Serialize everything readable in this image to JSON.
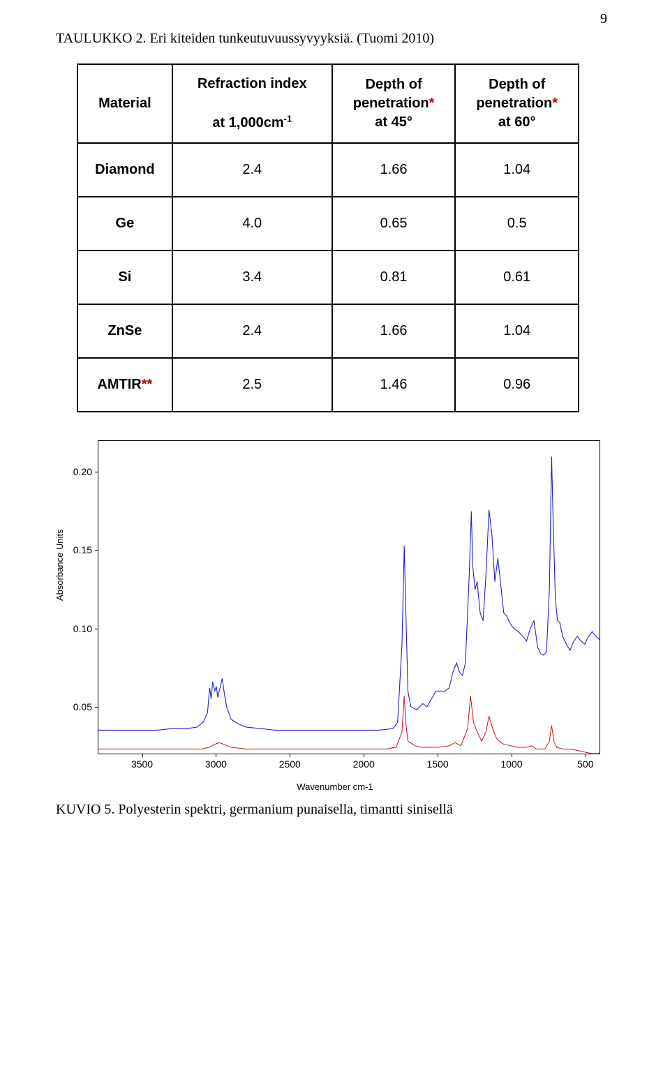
{
  "page_number": "9",
  "caption_table": "TAULUKKO 2. Eri kiteiden tunkeutuvuussyvyyksiä. (Tuomi 2010)",
  "table": {
    "headers": {
      "col0_title": "Material",
      "col1_line1": "Refraction index",
      "col1_line2_prefix": "at 1,000cm",
      "col1_line2_exp": "-1",
      "col2_line1": "Depth of",
      "col2_line2_word": "penetration",
      "col2_line2_star": "*",
      "col2_line3": "at 45°",
      "col3_line1": "Depth of",
      "col3_line2_word": "penetration",
      "col3_line2_star": "*",
      "col3_line3": "at 60°"
    },
    "rows": [
      {
        "material": "Diamond",
        "star": "",
        "ri": "2.4",
        "d45": "1.66",
        "d60": "1.04"
      },
      {
        "material": "Ge",
        "star": "",
        "ri": "4.0",
        "d45": "0.65",
        "d60": "0.5"
      },
      {
        "material": "Si",
        "star": "",
        "ri": "3.4",
        "d45": "0.81",
        "d60": "0.61"
      },
      {
        "material": "ZnSe",
        "star": "",
        "ri": "2.4",
        "d45": "1.66",
        "d60": "1.04"
      },
      {
        "material": "AMTIR",
        "star": "**",
        "ri": "2.5",
        "d45": "1.46",
        "d60": "0.96"
      }
    ]
  },
  "chart": {
    "ylabel": "Absorbance Units",
    "xlabel": "Wavenumber cm-1",
    "xmin": 400,
    "xmax": 3800,
    "ymin": 0.02,
    "ymax": 0.22,
    "yticks": [
      {
        "v": 0.05,
        "label": "0.05"
      },
      {
        "v": 0.1,
        "label": "0.10"
      },
      {
        "v": 0.15,
        "label": "0.15"
      },
      {
        "v": 0.2,
        "label": "0.20"
      }
    ],
    "xticks": [
      {
        "v": 3500,
        "label": "3500"
      },
      {
        "v": 3000,
        "label": "3000"
      },
      {
        "v": 2500,
        "label": "2500"
      },
      {
        "v": 2000,
        "label": "2000"
      },
      {
        "v": 1500,
        "label": "1500"
      },
      {
        "v": 1000,
        "label": "1000"
      },
      {
        "v": 500,
        "label": "500"
      }
    ],
    "series": [
      {
        "name": "diamond-blue",
        "color": "#1f1fd6",
        "width": 1.1,
        "points": [
          [
            3800,
            0.035
          ],
          [
            3700,
            0.035
          ],
          [
            3600,
            0.035
          ],
          [
            3500,
            0.035
          ],
          [
            3400,
            0.035
          ],
          [
            3300,
            0.036
          ],
          [
            3200,
            0.036
          ],
          [
            3130,
            0.037
          ],
          [
            3090,
            0.04
          ],
          [
            3060,
            0.046
          ],
          [
            3045,
            0.062
          ],
          [
            3035,
            0.055
          ],
          [
            3025,
            0.066
          ],
          [
            3010,
            0.06
          ],
          [
            3000,
            0.063
          ],
          [
            2990,
            0.056
          ],
          [
            2975,
            0.062
          ],
          [
            2960,
            0.068
          ],
          [
            2945,
            0.058
          ],
          [
            2930,
            0.05
          ],
          [
            2900,
            0.042
          ],
          [
            2850,
            0.039
          ],
          [
            2800,
            0.037
          ],
          [
            2700,
            0.036
          ],
          [
            2600,
            0.035
          ],
          [
            2500,
            0.035
          ],
          [
            2400,
            0.035
          ],
          [
            2300,
            0.035
          ],
          [
            2200,
            0.035
          ],
          [
            2100,
            0.035
          ],
          [
            2000,
            0.035
          ],
          [
            1900,
            0.035
          ],
          [
            1800,
            0.036
          ],
          [
            1770,
            0.04
          ],
          [
            1740,
            0.09
          ],
          [
            1725,
            0.153
          ],
          [
            1715,
            0.115
          ],
          [
            1700,
            0.06
          ],
          [
            1680,
            0.05
          ],
          [
            1640,
            0.048
          ],
          [
            1600,
            0.052
          ],
          [
            1570,
            0.05
          ],
          [
            1540,
            0.055
          ],
          [
            1510,
            0.06
          ],
          [
            1480,
            0.06
          ],
          [
            1450,
            0.06
          ],
          [
            1420,
            0.062
          ],
          [
            1395,
            0.072
          ],
          [
            1370,
            0.078
          ],
          [
            1350,
            0.072
          ],
          [
            1330,
            0.07
          ],
          [
            1310,
            0.078
          ],
          [
            1285,
            0.132
          ],
          [
            1270,
            0.175
          ],
          [
            1260,
            0.14
          ],
          [
            1245,
            0.125
          ],
          [
            1230,
            0.13
          ],
          [
            1210,
            0.11
          ],
          [
            1190,
            0.105
          ],
          [
            1170,
            0.135
          ],
          [
            1150,
            0.176
          ],
          [
            1130,
            0.16
          ],
          [
            1110,
            0.13
          ],
          [
            1090,
            0.145
          ],
          [
            1070,
            0.128
          ],
          [
            1050,
            0.11
          ],
          [
            1030,
            0.108
          ],
          [
            1005,
            0.103
          ],
          [
            980,
            0.1
          ],
          [
            950,
            0.098
          ],
          [
            920,
            0.095
          ],
          [
            895,
            0.092
          ],
          [
            870,
            0.1
          ],
          [
            845,
            0.105
          ],
          [
            820,
            0.088
          ],
          [
            800,
            0.084
          ],
          [
            780,
            0.083
          ],
          [
            760,
            0.085
          ],
          [
            740,
            0.125
          ],
          [
            725,
            0.21
          ],
          [
            715,
            0.17
          ],
          [
            700,
            0.12
          ],
          [
            685,
            0.105
          ],
          [
            670,
            0.104
          ],
          [
            650,
            0.095
          ],
          [
            625,
            0.09
          ],
          [
            600,
            0.086
          ],
          [
            575,
            0.092
          ],
          [
            550,
            0.095
          ],
          [
            525,
            0.092
          ],
          [
            500,
            0.09
          ],
          [
            475,
            0.095
          ],
          [
            450,
            0.098
          ],
          [
            425,
            0.095
          ],
          [
            400,
            0.093
          ]
        ]
      },
      {
        "name": "germanium-red",
        "color": "#d01018",
        "width": 1.0,
        "points": [
          [
            3800,
            0.023
          ],
          [
            3600,
            0.023
          ],
          [
            3400,
            0.023
          ],
          [
            3200,
            0.023
          ],
          [
            3100,
            0.023
          ],
          [
            3050,
            0.024
          ],
          [
            3010,
            0.026
          ],
          [
            2980,
            0.027
          ],
          [
            2950,
            0.026
          ],
          [
            2900,
            0.024
          ],
          [
            2800,
            0.023
          ],
          [
            2600,
            0.023
          ],
          [
            2400,
            0.023
          ],
          [
            2200,
            0.023
          ],
          [
            2000,
            0.023
          ],
          [
            1850,
            0.023
          ],
          [
            1780,
            0.024
          ],
          [
            1740,
            0.034
          ],
          [
            1725,
            0.057
          ],
          [
            1715,
            0.04
          ],
          [
            1700,
            0.028
          ],
          [
            1650,
            0.025
          ],
          [
            1600,
            0.024
          ],
          [
            1500,
            0.024
          ],
          [
            1420,
            0.025
          ],
          [
            1380,
            0.027
          ],
          [
            1340,
            0.025
          ],
          [
            1295,
            0.036
          ],
          [
            1275,
            0.057
          ],
          [
            1255,
            0.04
          ],
          [
            1230,
            0.034
          ],
          [
            1200,
            0.028
          ],
          [
            1170,
            0.034
          ],
          [
            1150,
            0.044
          ],
          [
            1125,
            0.036
          ],
          [
            1100,
            0.03
          ],
          [
            1080,
            0.028
          ],
          [
            1050,
            0.026
          ],
          [
            1000,
            0.025
          ],
          [
            950,
            0.024
          ],
          [
            900,
            0.024
          ],
          [
            860,
            0.025
          ],
          [
            830,
            0.023
          ],
          [
            800,
            0.023
          ],
          [
            770,
            0.023
          ],
          [
            740,
            0.028
          ],
          [
            725,
            0.038
          ],
          [
            710,
            0.028
          ],
          [
            690,
            0.024
          ],
          [
            650,
            0.023
          ],
          [
            600,
            0.023
          ],
          [
            550,
            0.022
          ],
          [
            500,
            0.021
          ],
          [
            450,
            0.02
          ],
          [
            400,
            0.02
          ]
        ]
      }
    ]
  },
  "caption_figure": "KUVIO 5. Polyesterin spektri, germanium punaisella, timantti sinisellä"
}
